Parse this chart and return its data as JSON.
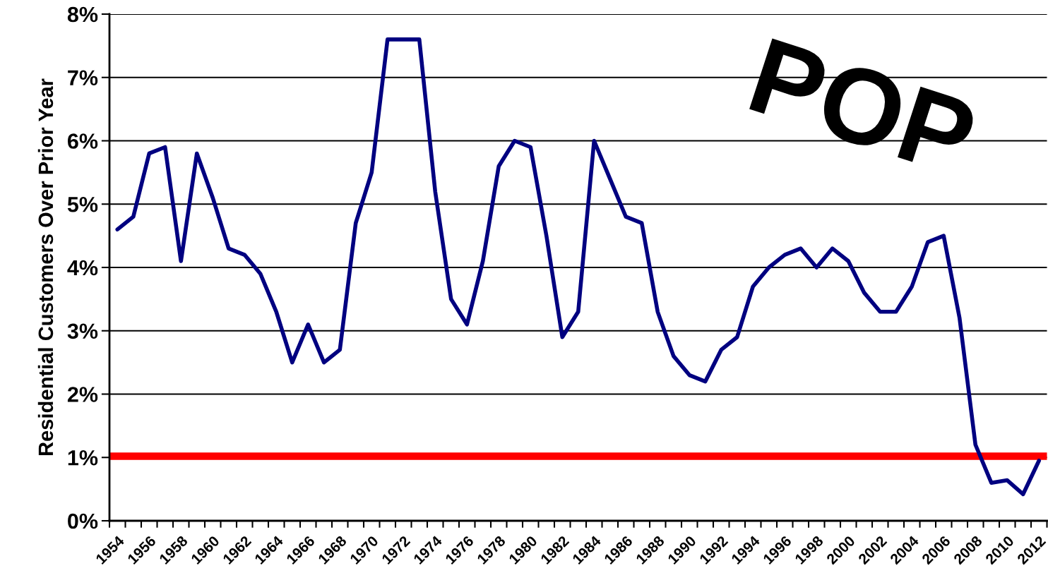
{
  "chart_data": {
    "type": "line",
    "ylabel": "Residential Customers Over Prior Year",
    "categories": [
      "1954",
      null,
      "1956",
      null,
      "1958",
      null,
      "1960",
      null,
      "1962",
      null,
      "1964",
      null,
      "1966",
      null,
      "1968",
      null,
      "1970",
      null,
      "1972",
      null,
      "1974",
      null,
      "1976",
      null,
      "1978",
      null,
      "1980",
      null,
      "1982",
      null,
      "1984",
      null,
      "1986",
      null,
      "1988",
      null,
      "1990",
      null,
      "1992",
      null,
      "1994",
      null,
      "1996",
      null,
      "1998",
      null,
      "2000",
      null,
      "2002",
      null,
      "2004",
      null,
      "2006",
      null,
      "2008",
      null,
      "2010",
      null,
      "2012"
    ],
    "series": [
      {
        "color": "#000080",
        "values": [
          4.6,
          4.8,
          5.8,
          5.9,
          4.1,
          5.8,
          5.1,
          4.3,
          4.2,
          3.9,
          3.3,
          2.5,
          3.1,
          2.5,
          2.7,
          4.7,
          5.5,
          7.6,
          7.6,
          7.6,
          5.2,
          3.5,
          3.1,
          4.1,
          5.6,
          6.0,
          5.9,
          4.5,
          2.9,
          3.3,
          6.0,
          5.4,
          4.8,
          4.7,
          3.3,
          2.6,
          2.3,
          2.2,
          2.7,
          2.9,
          3.7,
          4.0,
          4.2,
          4.3,
          4.0,
          4.3,
          4.1,
          3.6,
          3.3,
          3.3,
          3.7,
          4.4,
          4.5,
          3.2,
          1.2,
          0.6,
          0.64,
          0.42,
          0.95
        ]
      }
    ],
    "ylim": [
      0,
      8
    ],
    "yticks": [
      {
        "value": 0,
        "label": "0%"
      },
      {
        "value": 1,
        "label": "1%"
      },
      {
        "value": 2,
        "label": "2%"
      },
      {
        "value": 3,
        "label": "3%"
      },
      {
        "value": 4,
        "label": "4%"
      },
      {
        "value": 5,
        "label": "5%"
      },
      {
        "value": 6,
        "label": "6%"
      },
      {
        "value": 7,
        "label": "7%"
      },
      {
        "value": 8,
        "label": "8%"
      }
    ],
    "grid": "y",
    "legend": false,
    "marker": "none",
    "line_style": "solid",
    "ref_lines": [
      {
        "axis": "y",
        "value": 1.02,
        "color": "#ff0000",
        "line_style": "solid"
      }
    ],
    "annotations": [
      "POP"
    ]
  }
}
